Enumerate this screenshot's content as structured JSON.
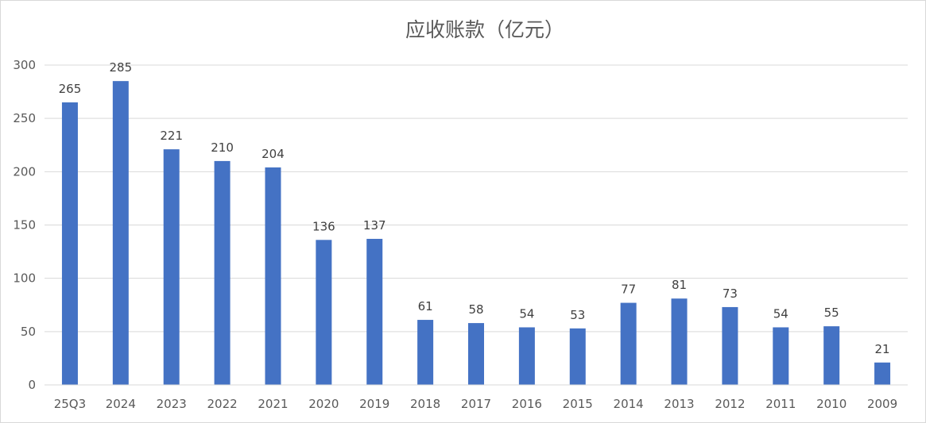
{
  "chart_data": {
    "type": "bar",
    "title": "应收账款（亿元）",
    "xlabel": "",
    "ylabel": "",
    "categories": [
      "25Q3",
      "2024",
      "2023",
      "2022",
      "2021",
      "2020",
      "2019",
      "2018",
      "2017",
      "2016",
      "2015",
      "2014",
      "2013",
      "2012",
      "2011",
      "2010",
      "2009"
    ],
    "values": [
      265,
      285,
      221,
      210,
      204,
      136,
      137,
      61,
      58,
      54,
      53,
      77,
      81,
      73,
      54,
      55,
      21
    ],
    "ylim": [
      0,
      300
    ],
    "yticks": [
      "0",
      "50",
      "100",
      "150",
      "200",
      "250",
      "300"
    ],
    "bar_color": "#4472C4",
    "grid": true,
    "legend": "none"
  }
}
